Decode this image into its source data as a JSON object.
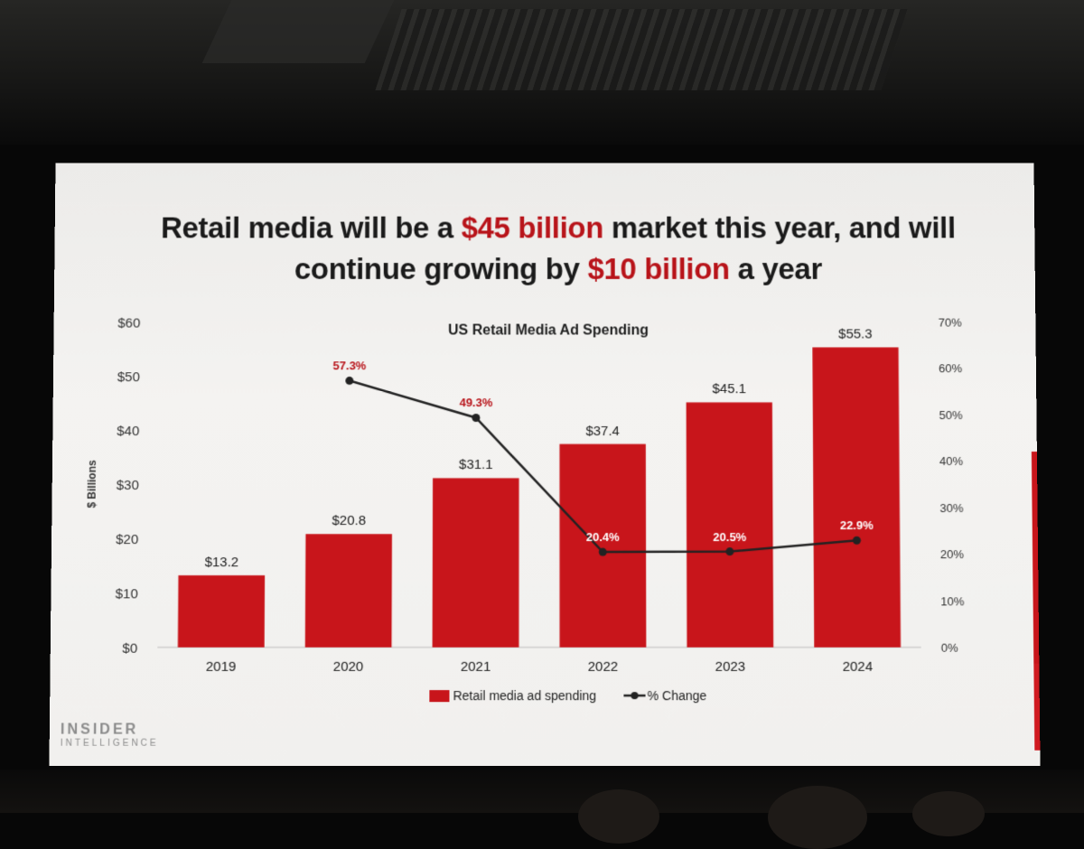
{
  "headline": {
    "line1_a": "Retail media will be a ",
    "line1_hl": "$45 billion",
    "line1_b": " market this year, and will",
    "line2_a": "continue growing by ",
    "line2_hl": "$10 billion",
    "line2_b": " a year"
  },
  "logo": {
    "line1": "INSIDER",
    "line2": "INTELLIGENCE"
  },
  "colors": {
    "bar": "#c8151b",
    "line": "#222222",
    "accent": "#b8141a"
  },
  "chart_data": {
    "type": "bar",
    "title": "US Retail Media Ad Spending",
    "categories": [
      "2019",
      "2020",
      "2021",
      "2022",
      "2023",
      "2024"
    ],
    "series": [
      {
        "name": "Retail media ad spending",
        "kind": "bar",
        "axis": "left",
        "values": [
          13.2,
          20.8,
          31.1,
          37.4,
          45.1,
          55.3
        ],
        "labels": [
          "$13.2",
          "$20.8",
          "$31.1",
          "$37.4",
          "$45.1",
          "$55.3"
        ]
      },
      {
        "name": "% Change",
        "kind": "line",
        "axis": "right",
        "values": [
          null,
          57.3,
          49.3,
          20.4,
          20.5,
          22.9
        ],
        "labels": [
          "",
          "57.3%",
          "49.3%",
          "20.4%",
          "20.5%",
          "22.9%"
        ]
      }
    ],
    "ylabel": "$ Billions",
    "ylim": [
      0,
      60
    ],
    "yticks": [
      "$0",
      "$10",
      "$20",
      "$30",
      "$40",
      "$50",
      "$60"
    ],
    "y2lim": [
      0,
      70
    ],
    "y2ticks": [
      "0%",
      "10%",
      "20%",
      "30%",
      "40%",
      "50%",
      "60%",
      "70%"
    ],
    "legend": [
      "Retail media ad spending",
      "% Change"
    ],
    "legend_position": "bottom-center"
  }
}
